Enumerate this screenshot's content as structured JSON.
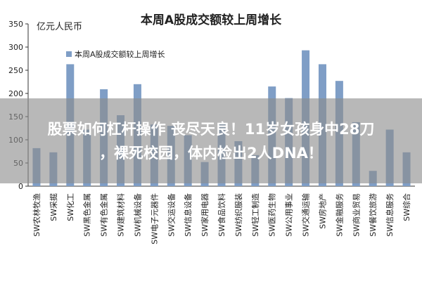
{
  "overlay": {
    "line1": "股票如何杠杆操作 丧尽天良！11岁女孩身中28刀",
    "line2": "，裸死校园，体内检出2人DNA！"
  },
  "chart_data": {
    "type": "bar",
    "title": "本周A股成交额较上周增长",
    "ylabel": "亿元人民币",
    "xlabel": "",
    "ylim": [
      0,
      350
    ],
    "yticks": [
      0,
      50,
      100,
      150,
      200,
      250,
      300,
      350
    ],
    "grid": false,
    "legend_position": "top-left",
    "categories": [
      "SW农林牧渔",
      "SW采掘",
      "SW化工",
      "SW黑色金属",
      "SW有色金属",
      "SW建筑材料",
      "SW机械设备",
      "SW电子元器件",
      "SW交运设备",
      "SW信息设备",
      "SW家用电器",
      "SW食品饮料",
      "SW纺织服装",
      "SW轻工制造",
      "SW医药生物",
      "SW公用事业",
      "SW交通运输",
      "SW房地产",
      "SW金融服务",
      "SW商业贸易",
      "SW餐饮旅游",
      "SW信息服务",
      "SW综合"
    ],
    "series": [
      {
        "name": "本周A股成交额较上周增长",
        "color": "#7f9ec6",
        "values": [
          82,
          73,
          263,
          122,
          209,
          153,
          220,
          133,
          130,
          110,
          52,
          135,
          97,
          67,
          215,
          190,
          293,
          263,
          227,
          138,
          33,
          122,
          73
        ]
      }
    ]
  }
}
